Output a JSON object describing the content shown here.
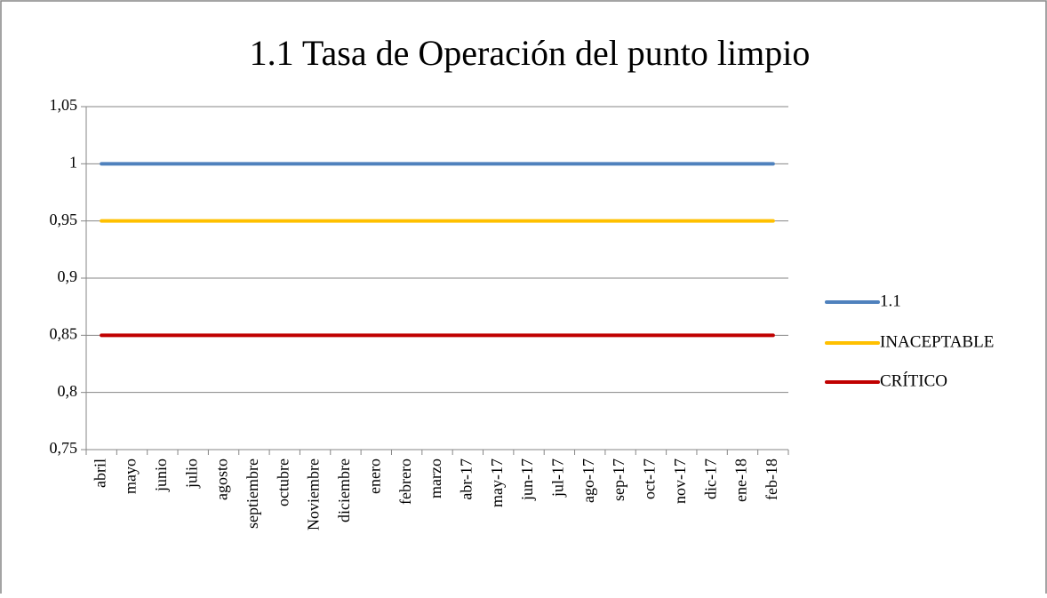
{
  "chart_data": {
    "type": "line",
    "title": "1.1 Tasa de Operación del punto limpio",
    "categories": [
      "abril",
      "mayo",
      "junio",
      "julio",
      "agosto",
      "septiembre",
      "octubre",
      "Noviembre",
      "diciembre",
      "enero",
      "febrero",
      "marzo",
      "abr-17",
      "may-17",
      "jun-17",
      "jul-17",
      "ago-17",
      "sep-17",
      "oct-17",
      "nov-17",
      "dic-17",
      "ene-18",
      "feb-18"
    ],
    "series": [
      {
        "name": "1.1",
        "color": "#4f81bd",
        "values": [
          1,
          1,
          1,
          1,
          1,
          1,
          1,
          1,
          1,
          1,
          1,
          1,
          1,
          1,
          1,
          1,
          1,
          1,
          1,
          1,
          1,
          1,
          1
        ]
      },
      {
        "name": "INACEPTABLE",
        "color": "#ffc000",
        "values": [
          0.95,
          0.95,
          0.95,
          0.95,
          0.95,
          0.95,
          0.95,
          0.95,
          0.95,
          0.95,
          0.95,
          0.95,
          0.95,
          0.95,
          0.95,
          0.95,
          0.95,
          0.95,
          0.95,
          0.95,
          0.95,
          0.95,
          0.95
        ]
      },
      {
        "name": "CRÍTICO",
        "color": "#c00000",
        "values": [
          0.85,
          0.85,
          0.85,
          0.85,
          0.85,
          0.85,
          0.85,
          0.85,
          0.85,
          0.85,
          0.85,
          0.85,
          0.85,
          0.85,
          0.85,
          0.85,
          0.85,
          0.85,
          0.85,
          0.85,
          0.85,
          0.85,
          0.85
        ]
      }
    ],
    "ylim": [
      0.75,
      1.05
    ],
    "yticks": [
      {
        "value": 0.75,
        "label": "0,75"
      },
      {
        "value": 0.8,
        "label": "0,8"
      },
      {
        "value": 0.85,
        "label": "0,85"
      },
      {
        "value": 0.9,
        "label": "0,9"
      },
      {
        "value": 0.95,
        "label": "0,95"
      },
      1,
      {
        "value": 1.05,
        "label": "1,05"
      }
    ],
    "grid": true,
    "legend": "right"
  }
}
